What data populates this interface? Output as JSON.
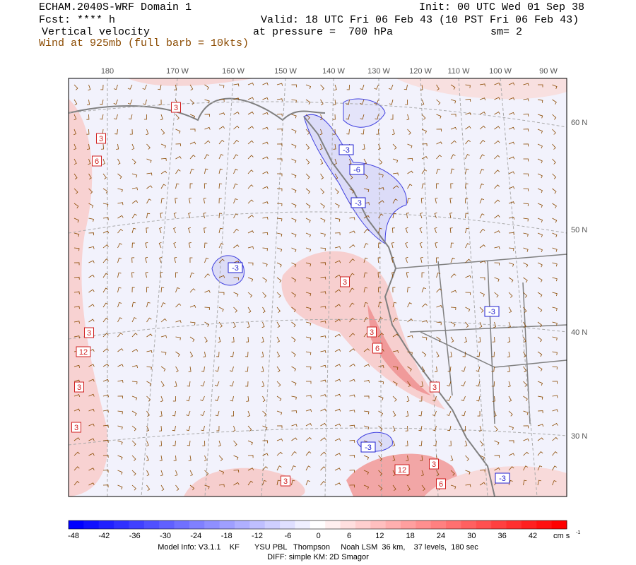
{
  "header": {
    "title": "ECHAM.2040S-WRF Domain 1",
    "init": "Init: 00 UTC Wed 01 Sep 38",
    "forecast": "Fcst: **** h",
    "valid": "Valid: 18 UTC Fri 06 Feb 43 (10 PST Fri 06 Feb 43)",
    "field": "Vertical velocity",
    "pressure": "at pressure =  700 hPa",
    "smoothing": "sm= 2",
    "wind": "Wind at 925mb (full barb = 10kts)"
  },
  "map": {
    "longitudes": [
      "180",
      "170 W",
      "160 W",
      "150 W",
      "140 W",
      "130 W",
      "120 W",
      "110 W",
      "100 W",
      "90 W"
    ],
    "latitudes": [
      "60 N",
      "50 N",
      "40 N",
      "30 N"
    ],
    "contour_labels": [
      "-3",
      "-6",
      "-3",
      "-3",
      "3",
      "-3",
      "3",
      "6",
      "3",
      "-3",
      "12",
      "3",
      "6",
      "3",
      "-3",
      "3",
      "3",
      "6",
      "3",
      "12",
      "3",
      "3"
    ]
  },
  "colorbar": {
    "ticks": [
      -48,
      -42,
      -36,
      -30,
      -24,
      -18,
      -12,
      -6,
      0,
      6,
      12,
      18,
      24,
      30,
      36,
      42
    ],
    "units": "cm s",
    "units_exponent": "-1"
  },
  "footer": {
    "model_info": "Model Info: V3.1.1    KF       YSU PBL   Thompson     Noah LSM  36 km,    37 levels,  180 sec",
    "diff": "DIFF: simple KM: 2D Smagor"
  }
}
